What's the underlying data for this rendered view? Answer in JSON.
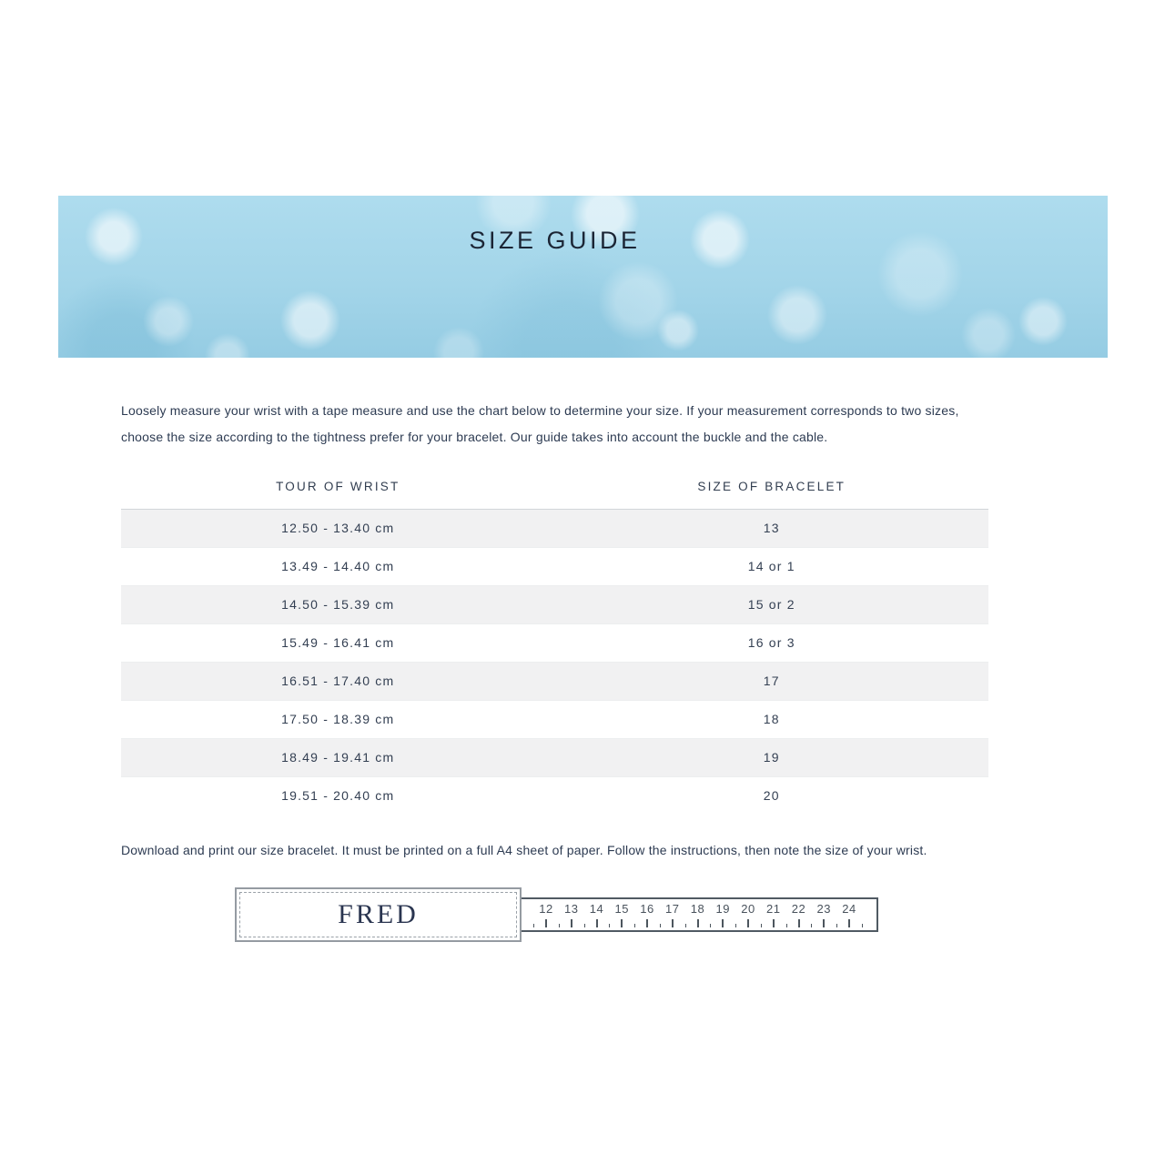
{
  "colors": {
    "banner_blue": "#a6d6ea",
    "accent_navy": "#2d3b52",
    "stripe_gray": "#f1f1f2"
  },
  "banner": {
    "title": "SIZE GUIDE"
  },
  "intro": {
    "text": "Loosely measure your wrist with a tape measure and use the chart below to determine your size. If your measurement corresponds to two sizes, choose the size according to the tightness prefer for your bracelet. Our guide takes into account the buckle and the cable."
  },
  "size_table": {
    "columns": [
      "TOUR OF WRIST",
      "SIZE OF BRACELET"
    ],
    "rows": [
      {
        "wrist": "12.50 - 13.40 cm",
        "bracelet": "13"
      },
      {
        "wrist": "13.49 - 14.40 cm",
        "bracelet": "14 or 1"
      },
      {
        "wrist": "14.50 - 15.39 cm",
        "bracelet": "15 or 2"
      },
      {
        "wrist": "15.49 - 16.41 cm",
        "bracelet": "16 or 3"
      },
      {
        "wrist": "16.51 - 17.40 cm",
        "bracelet": "17"
      },
      {
        "wrist": "17.50 - 18.39 cm",
        "bracelet": "18"
      },
      {
        "wrist": "18.49 - 19.41 cm",
        "bracelet": "19"
      },
      {
        "wrist": "19.51 - 20.40 cm",
        "bracelet": "20"
      }
    ]
  },
  "download": {
    "text": "Download and print our size bracelet. It must be printed on a full A4 sheet of paper. Follow the instructions, then note the size of your wrist."
  },
  "sizer": {
    "brand": "FRED",
    "ruler_numbers": [
      "12",
      "13",
      "14",
      "15",
      "16",
      "17",
      "18",
      "19",
      "20",
      "21",
      "22",
      "23",
      "24"
    ]
  }
}
